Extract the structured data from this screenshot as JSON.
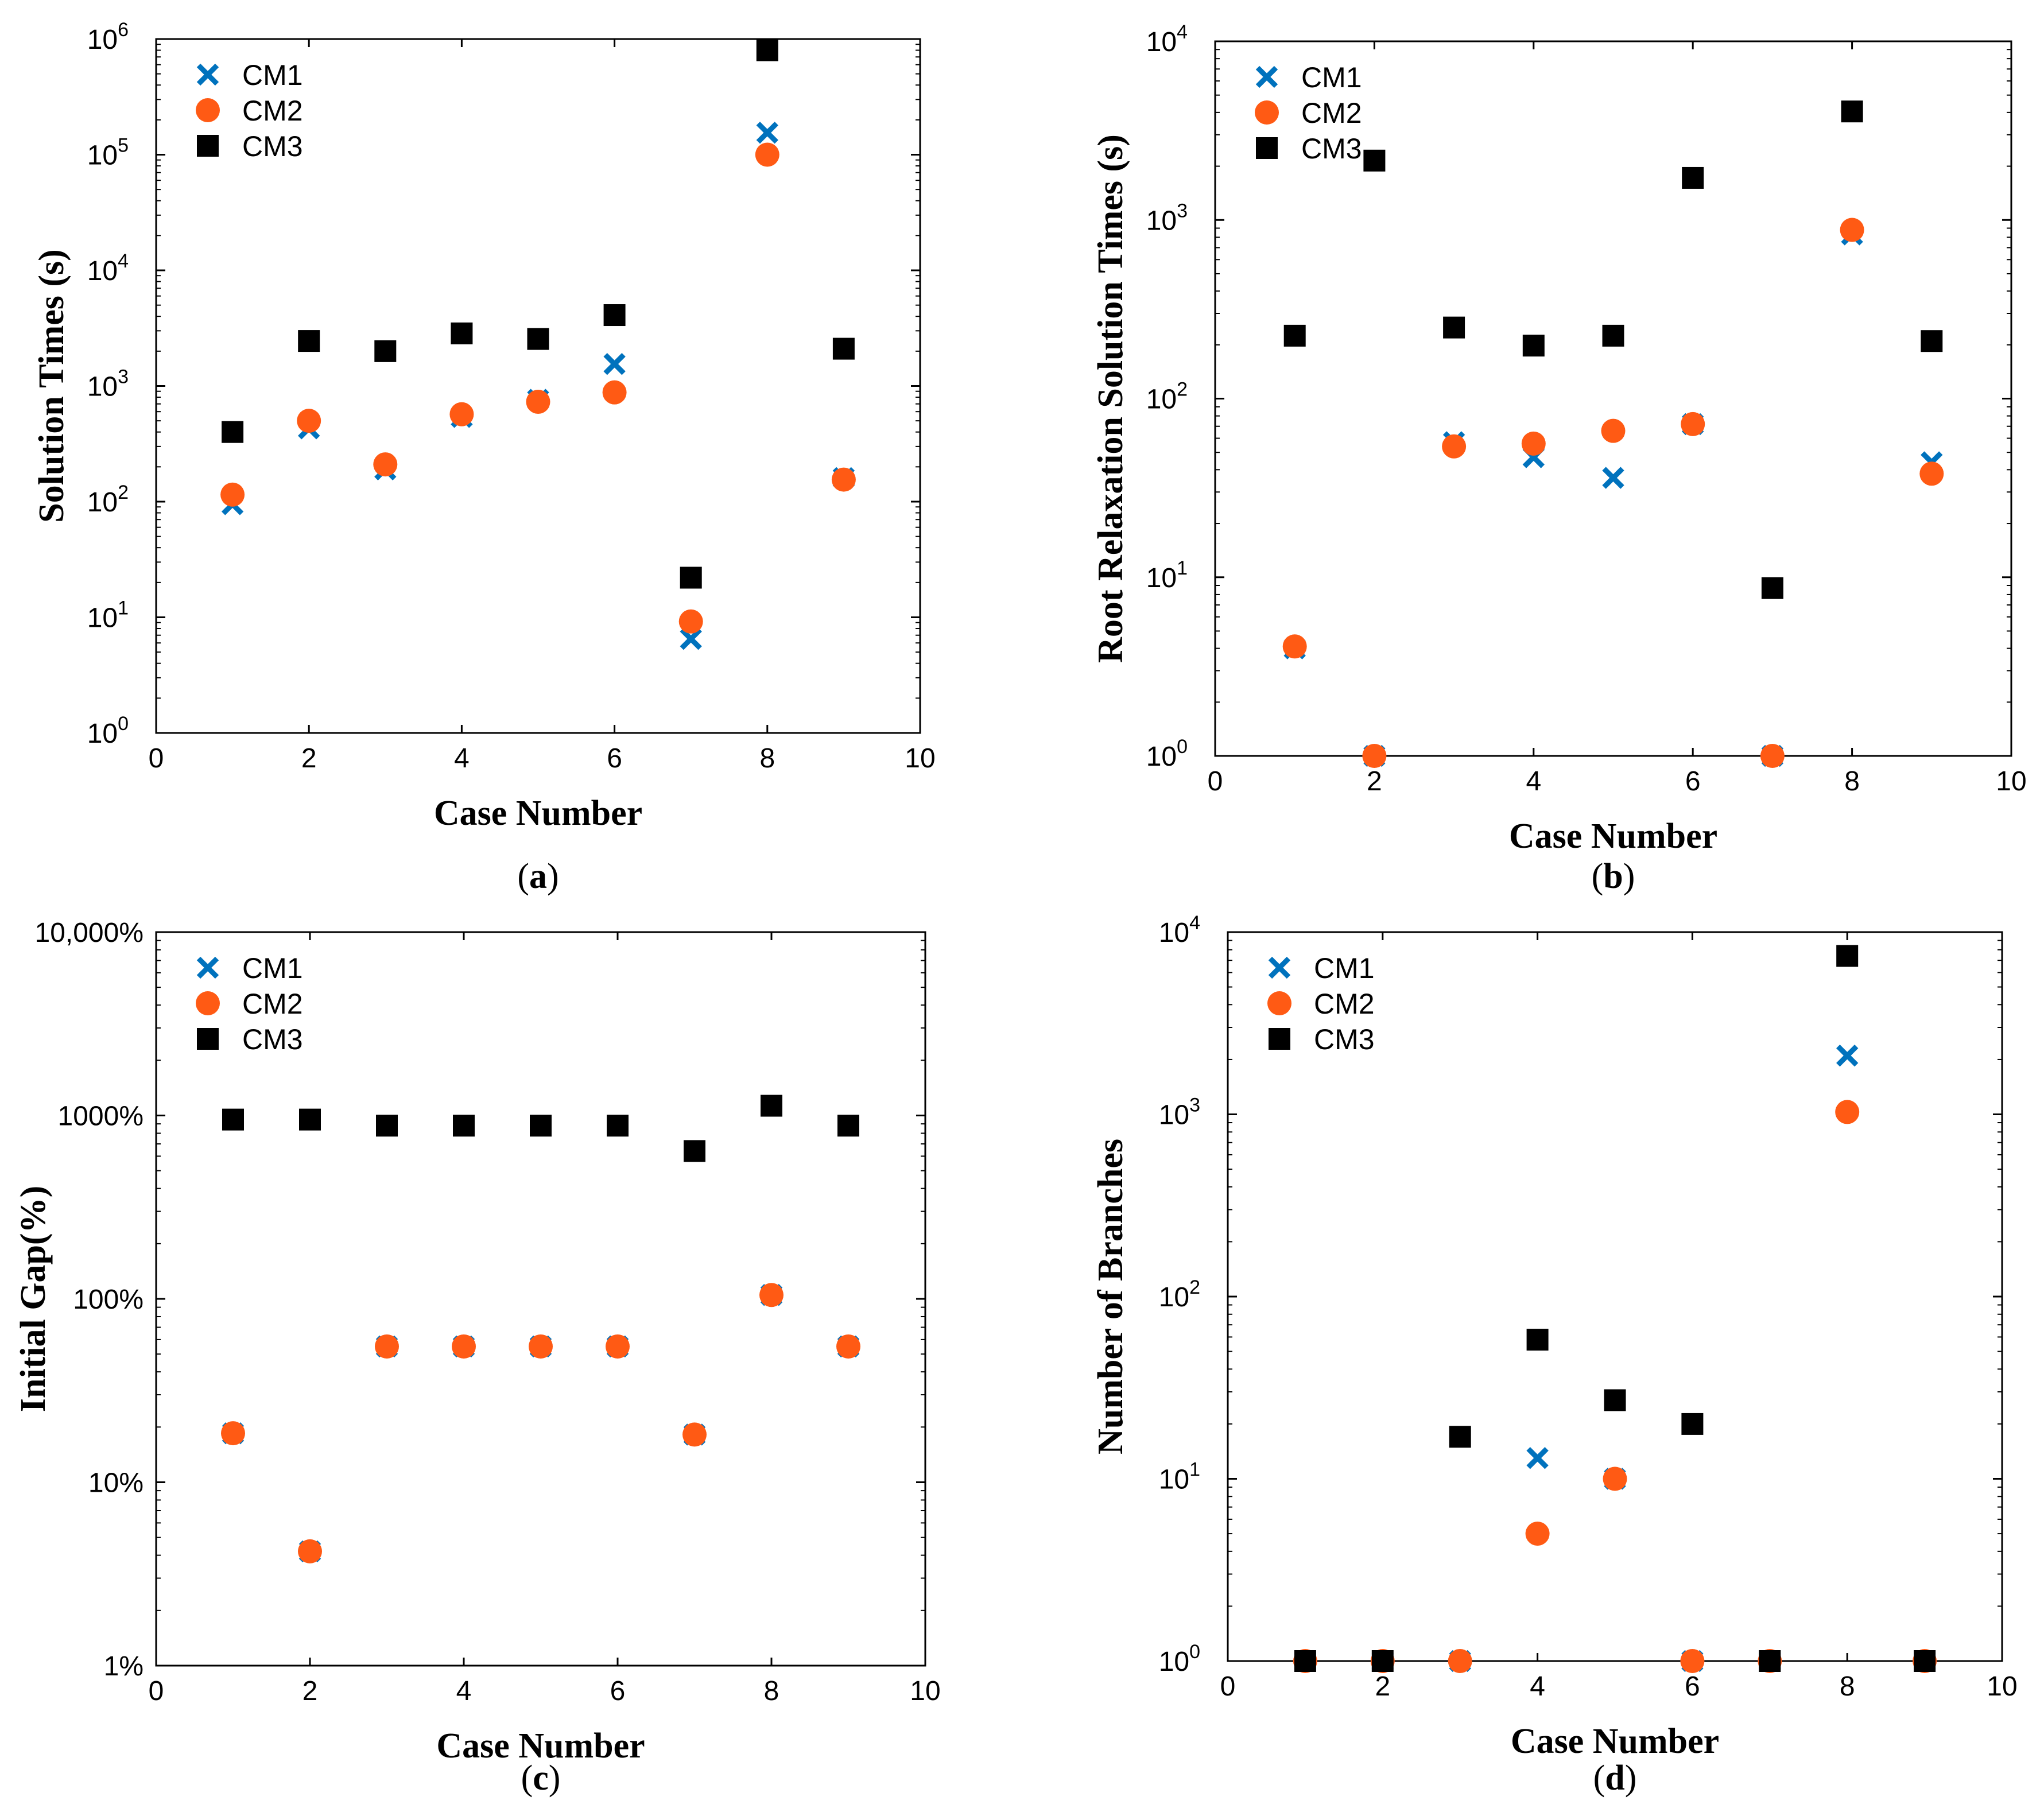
{
  "colors": {
    "CM1": "#0072bd",
    "CM2": "#ff5a14",
    "CM3": "#000000",
    "axis": "#000000"
  },
  "chart_data": [
    {
      "id": "a",
      "panel_label": "a",
      "type": "scatter",
      "yscale": "log",
      "xlabel": "Case Number",
      "ylabel": "Solution Times (s)",
      "xlim": [
        0,
        10
      ],
      "ylim": [
        1,
        1000000
      ],
      "xticks": [
        "0",
        "2",
        "4",
        "6",
        "8",
        "10"
      ],
      "yticks": [
        {
          "base": "10",
          "exp": "0"
        },
        {
          "base": "10",
          "exp": "1"
        },
        {
          "base": "10",
          "exp": "2"
        },
        {
          "base": "10",
          "exp": "3"
        },
        {
          "base": "10",
          "exp": "4"
        },
        {
          "base": "10",
          "exp": "5"
        },
        {
          "base": "10",
          "exp": "6"
        }
      ],
      "legend_position": "top-left",
      "x": [
        1,
        2,
        3,
        4,
        5,
        6,
        7,
        8,
        9
      ],
      "series": [
        {
          "name": "CM1",
          "marker": "x",
          "values": [
            95,
            430,
            190,
            540,
            760,
            1550,
            6.5,
            155000,
            160
          ]
        },
        {
          "name": "CM2",
          "marker": "circle",
          "values": [
            115,
            500,
            210,
            570,
            730,
            880,
            9.2,
            100000,
            155
          ]
        },
        {
          "name": "CM3",
          "marker": "square",
          "values": [
            400,
            2450,
            2000,
            2850,
            2550,
            4100,
            22,
            800000,
            2100
          ]
        }
      ]
    },
    {
      "id": "b",
      "panel_label": "b",
      "type": "scatter",
      "yscale": "log",
      "xlabel": "Case Number",
      "ylabel": "Root Relaxation Solution Times (s)",
      "xlim": [
        0,
        10
      ],
      "ylim": [
        1,
        10000
      ],
      "xticks": [
        "0",
        "2",
        "4",
        "6",
        "8",
        "10"
      ],
      "yticks": [
        {
          "base": "10",
          "exp": "0"
        },
        {
          "base": "10",
          "exp": "1"
        },
        {
          "base": "10",
          "exp": "2"
        },
        {
          "base": "10",
          "exp": "3"
        },
        {
          "base": "10",
          "exp": "4"
        }
      ],
      "legend_position": "top-left",
      "x": [
        1,
        2,
        3,
        4,
        5,
        6,
        7,
        8,
        9
      ],
      "series": [
        {
          "name": "CM1",
          "marker": "x",
          "values": [
            4,
            1,
            57,
            47,
            36,
            72,
            1,
            830,
            44
          ]
        },
        {
          "name": "CM2",
          "marker": "circle",
          "values": [
            4.1,
            1,
            54,
            56,
            66,
            72,
            1,
            880,
            38
          ]
        },
        {
          "name": "CM3",
          "marker": "square",
          "values": [
            225,
            2150,
            250,
            198,
            225,
            1720,
            8.7,
            4050,
            210
          ]
        }
      ]
    },
    {
      "id": "c",
      "panel_label": "c",
      "type": "scatter",
      "yscale": "log",
      "xlabel": "Case Number",
      "ylabel": "Initial Gap(%)",
      "xlim": [
        0,
        10
      ],
      "ylim": [
        1,
        10000
      ],
      "xticks": [
        "0",
        "2",
        "4",
        "6",
        "8",
        "10"
      ],
      "yticks": [
        {
          "base": "1%"
        },
        {
          "base": "10%"
        },
        {
          "base": "100%"
        },
        {
          "base": "1000%"
        },
        {
          "base": "10,000%"
        }
      ],
      "legend_position": "top-left",
      "x": [
        1,
        2,
        3,
        4,
        5,
        6,
        7,
        8,
        9
      ],
      "series": [
        {
          "name": "CM1",
          "marker": "x",
          "values": [
            18.5,
            4.2,
            55,
            55,
            55,
            55,
            18.2,
            105,
            55
          ]
        },
        {
          "name": "CM2",
          "marker": "circle",
          "values": [
            18.5,
            4.2,
            55,
            55,
            55,
            55,
            18.2,
            105,
            55
          ]
        },
        {
          "name": "CM3",
          "marker": "square",
          "values": [
            950,
            950,
            880,
            880,
            880,
            880,
            640,
            1130,
            880
          ]
        }
      ]
    },
    {
      "id": "d",
      "panel_label": "d",
      "type": "scatter",
      "yscale": "log",
      "xlabel": "Case Number",
      "ylabel": "Number of Branches",
      "xlim": [
        0,
        10
      ],
      "ylim": [
        1,
        10000
      ],
      "xticks": [
        "0",
        "2",
        "4",
        "6",
        "8",
        "10"
      ],
      "yticks": [
        {
          "base": "10",
          "exp": "0"
        },
        {
          "base": "10",
          "exp": "1"
        },
        {
          "base": "10",
          "exp": "2"
        },
        {
          "base": "10",
          "exp": "3"
        },
        {
          "base": "10",
          "exp": "4"
        }
      ],
      "legend_position": "top-left",
      "x": [
        1,
        2,
        3,
        4,
        5,
        6,
        7,
        8,
        9
      ],
      "series": [
        {
          "name": "CM1",
          "marker": "x",
          "values": [
            1,
            1,
            1,
            13,
            10,
            1,
            1,
            2100,
            1
          ]
        },
        {
          "name": "CM2",
          "marker": "circle",
          "values": [
            1,
            1,
            1,
            5,
            10,
            1,
            1,
            1030,
            1
          ]
        },
        {
          "name": "CM3",
          "marker": "square",
          "values": [
            1,
            1,
            17,
            58,
            27,
            20,
            1,
            7400,
            1
          ]
        }
      ]
    }
  ]
}
